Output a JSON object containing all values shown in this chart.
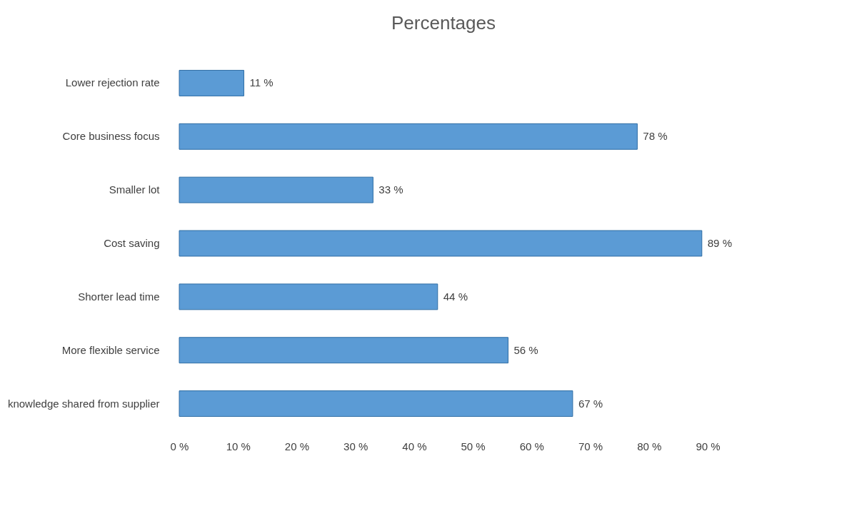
{
  "chart_data": {
    "type": "bar",
    "orientation": "horizontal",
    "title": "Percentages",
    "categories": [
      "Lower rejection rate",
      "Core business focus",
      "Smaller lot",
      "Cost saving",
      "Shorter lead time",
      "More flexible service",
      "knowledge shared from supplier"
    ],
    "values": [
      11,
      78,
      33,
      89,
      44,
      56,
      67
    ],
    "value_labels": [
      "11 %",
      "78 %",
      "33 %",
      "89 %",
      "44 %",
      "56 %",
      "67 %"
    ],
    "color": "#5b9bd5",
    "xlim": [
      0,
      90
    ],
    "xticks": [
      {
        "value": 0,
        "label": "0 %"
      },
      {
        "value": 10,
        "label": "10 %"
      },
      {
        "value": 20,
        "label": "20 %"
      },
      {
        "value": 30,
        "label": "30 %"
      },
      {
        "value": 40,
        "label": "40 %"
      },
      {
        "value": 50,
        "label": "50 %"
      },
      {
        "value": 60,
        "label": "60 %"
      },
      {
        "value": 70,
        "label": "70 %"
      },
      {
        "value": 80,
        "label": "80 %"
      },
      {
        "value": 90,
        "label": "90 %"
      }
    ],
    "grid": false
  }
}
